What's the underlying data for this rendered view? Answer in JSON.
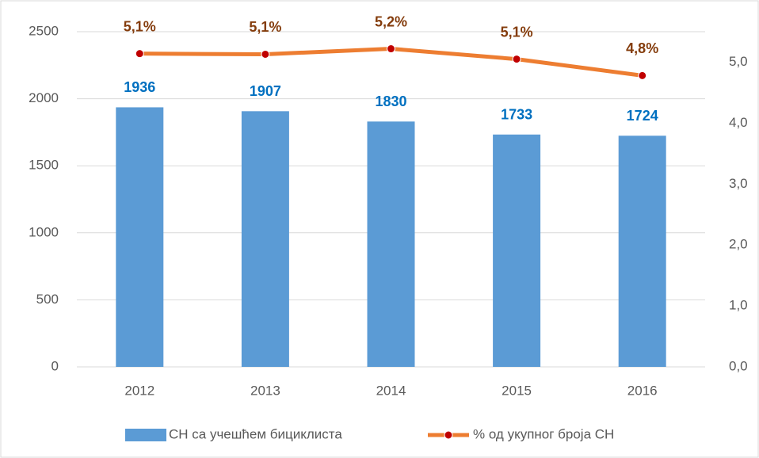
{
  "chart_data": {
    "type": "bar-line",
    "categories": [
      "2012",
      "2013",
      "2014",
      "2015",
      "2016"
    ],
    "series": [
      {
        "name": "СН са учешћем бициклиста",
        "color": "#5b9bd5",
        "values": [
          1936,
          1907,
          1830,
          1733,
          1724
        ]
      },
      {
        "name": "% од укупног броја СН",
        "color": "#ed7d31",
        "marker_color": "#c00000",
        "axis": "y2",
        "values": [
          5.14,
          5.13,
          5.22,
          5.05,
          4.78
        ],
        "value_labels": [
          "5,1%",
          "5,1%",
          "5,2%",
          "5,1%",
          "4,8%"
        ]
      }
    ],
    "ylim": [
      0,
      2500
    ],
    "yticks": [
      0,
      500,
      1000,
      1500,
      2000,
      2500
    ],
    "y2lim": [
      0,
      5.5
    ],
    "y2ticks": [
      {
        "value": 0,
        "label": "0,0"
      },
      {
        "value": 1,
        "label": "1,0"
      },
      {
        "value": 2,
        "label": "2,0"
      },
      {
        "value": 3,
        "label": "3,0"
      },
      {
        "value": 4,
        "label": "4,0"
      },
      {
        "value": 5,
        "label": "5,0"
      }
    ],
    "grid": true,
    "legend": "bottom"
  }
}
